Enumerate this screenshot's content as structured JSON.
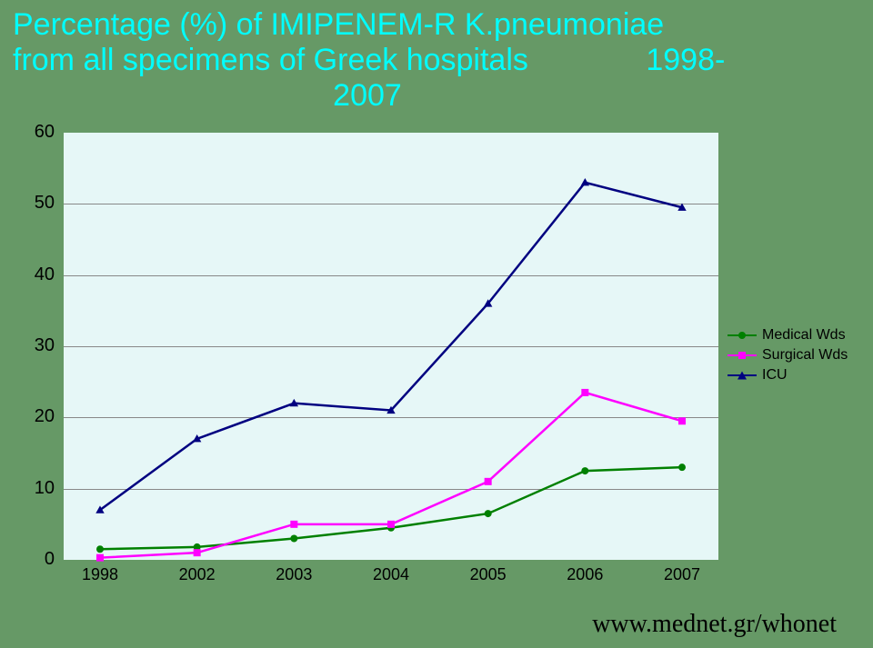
{
  "title_line1": "Percentage (%) of IMIPENEM-R K.pneumoniae",
  "title_line2_a": "from all specimens of Greek hospitals",
  "title_line2_b": "1998-",
  "title_line3": "2007",
  "footer": "www.mednet.gr/whonet",
  "chart": {
    "type": "line",
    "background_color": "#e6f7f7",
    "grid_color": "#888888",
    "ylim": [
      0,
      60
    ],
    "ytick_step": 10,
    "yticks": [
      0,
      10,
      20,
      30,
      40,
      50,
      60
    ],
    "categories": [
      "1998",
      "2002",
      "2003",
      "2004",
      "2005",
      "2006",
      "2007"
    ],
    "label_fontsize": 20,
    "line_width": 2.5,
    "marker_size": 8,
    "series": [
      {
        "name": "Medical Wds",
        "color": "#008000",
        "marker": "circle",
        "values": [
          1.5,
          1.8,
          3.0,
          4.5,
          6.5,
          12.5,
          13.0
        ]
      },
      {
        "name": "Surgical Wds",
        "color": "#ff00ff",
        "marker": "square",
        "values": [
          0.3,
          1.0,
          5.0,
          5.0,
          11.0,
          23.5,
          19.5
        ]
      },
      {
        "name": "ICU",
        "color": "#000080",
        "marker": "triangle",
        "values": [
          7.0,
          17.0,
          22.0,
          21.0,
          36.0,
          53.0,
          49.5
        ]
      }
    ]
  }
}
